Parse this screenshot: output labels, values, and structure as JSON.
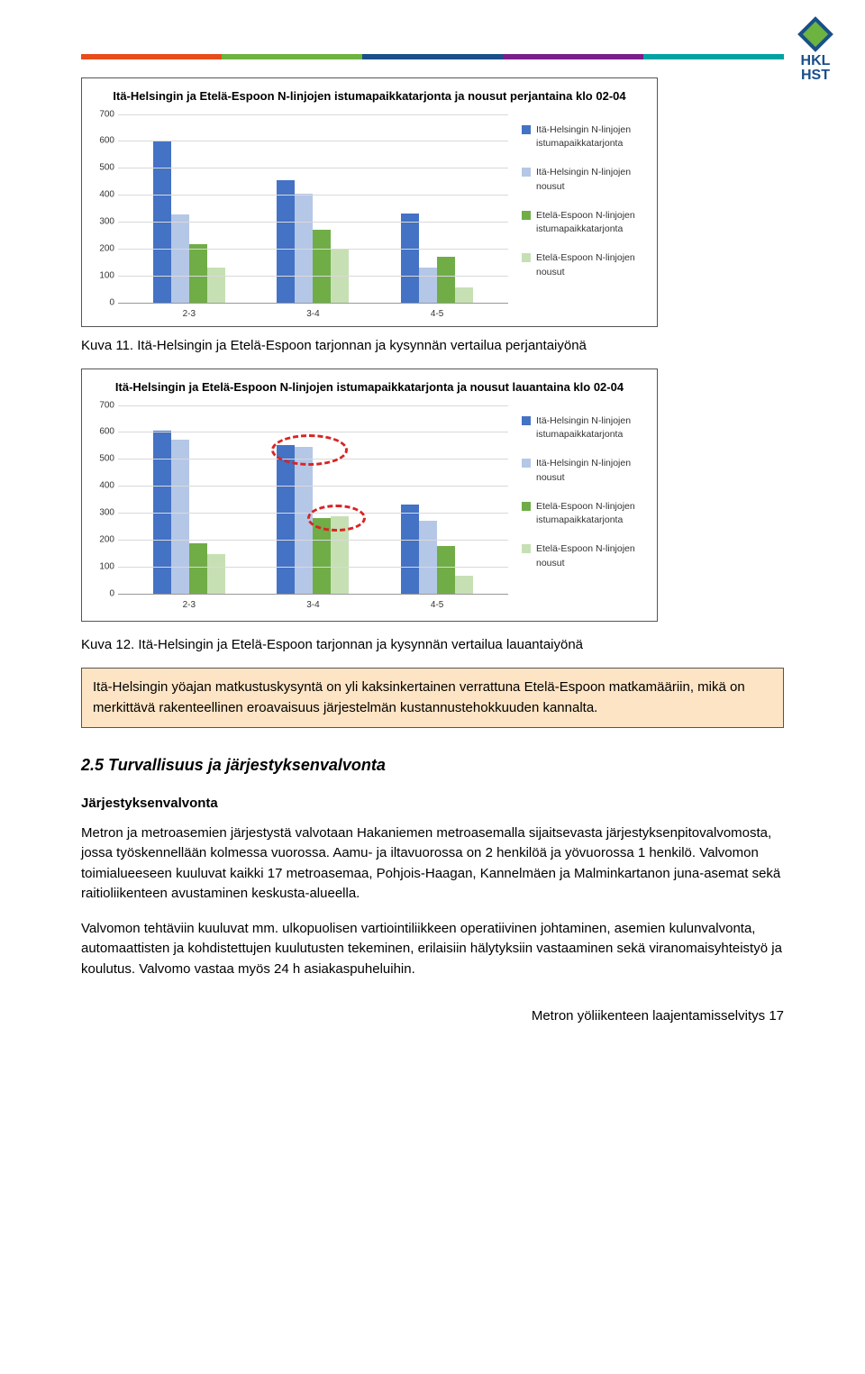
{
  "logo": {
    "line1": "HKL",
    "line2": "HST"
  },
  "header_bar_colors": [
    "#e84c1a",
    "#6db33f",
    "#1a4f8a",
    "#7a1e8c",
    "#00a3a3"
  ],
  "chart1": {
    "type": "bar",
    "title": "Itä-Helsingin ja Etelä-Espoon N-linjojen istumapaikkatarjonta ja nousut perjantaina klo 02-04",
    "ylim": [
      0,
      700
    ],
    "ytick_step": 100,
    "categories": [
      "2-3",
      "3-4",
      "4-5"
    ],
    "series": [
      {
        "label": "Itä-Helsingin N-linjojen istumapaikkatarjonta",
        "color": "#4472c4",
        "values": [
          600,
          455,
          330
        ]
      },
      {
        "label": "Itä-Helsingin N-linjojen nousut",
        "color": "#b5c7e7",
        "values": [
          325,
          405,
          130
        ]
      },
      {
        "label": "Etelä-Espoon N-linjojen istumapaikkatarjonta",
        "color": "#70ad47",
        "values": [
          215,
          270,
          170
        ]
      },
      {
        "label": "Etelä-Espoon N-linjojen nousut",
        "color": "#c6e0b4",
        "values": [
          130,
          195,
          55
        ]
      }
    ],
    "grid_color": "#d9d9d9",
    "background_color": "#ffffff"
  },
  "caption1": "Kuva 11. Itä-Helsingin ja Etelä-Espoon tarjonnan ja kysynnän vertailua perjantaiyönä",
  "chart2": {
    "type": "bar",
    "title": "Itä-Helsingin ja Etelä-Espoon N-linjojen istumapaikkatarjonta ja nousut lauantaina klo 02-04",
    "ylim": [
      0,
      700
    ],
    "ytick_step": 100,
    "categories": [
      "2-3",
      "3-4",
      "4-5"
    ],
    "series": [
      {
        "label": "Itä-Helsingin N-linjojen istumapaikkatarjonta",
        "color": "#4472c4",
        "values": [
          605,
          550,
          330
        ]
      },
      {
        "label": "Itä-Helsingin N-linjojen nousut",
        "color": "#b5c7e7",
        "values": [
          570,
          545,
          270
        ]
      },
      {
        "label": "Etelä-Espoon N-linjojen istumapaikkatarjonta",
        "color": "#70ad47",
        "values": [
          185,
          280,
          175
        ]
      },
      {
        "label": "Etelä-Espoon N-linjojen nousut",
        "color": "#c6e0b4",
        "values": [
          145,
          285,
          65
        ]
      }
    ],
    "circles": [
      {
        "cx_pct": 49,
        "cy_pct": 24,
        "w": 85,
        "h": 35
      },
      {
        "cx_pct": 56,
        "cy_pct": 60,
        "w": 65,
        "h": 30
      }
    ],
    "grid_color": "#d9d9d9",
    "background_color": "#ffffff"
  },
  "caption2": "Kuva 12. Itä-Helsingin ja Etelä-Espoon tarjonnan ja kysynnän vertailua lauantaiyönä",
  "highlight": "Itä-Helsingin yöajan matkustuskysyntä on yli kaksinkertainen verrattuna Etelä-Espoon matkamääriin, mikä on merkittävä rakenteellinen eroavaisuus järjestelmän kustannus­tehokkuuden kannalta.",
  "section": {
    "number": "2.5",
    "title": "Turvallisuus ja järjestyksenvalvonta"
  },
  "subheading": "Järjestyksenvalvonta",
  "para1": "Metron ja metroasemien järjestystä valvotaan Hakaniemen metroasemalla sijaitsevasta järjestyksenpitovalvomosta, jossa työskennellään kolmessa vuorossa. Aamu- ja iltavuorossa on 2 henkilöä ja yövuorossa 1 henkilö. Valvomon toimialueeseen kuuluvat kaikki 17 metroasemaa, Pohjois-Haagan, Kannelmäen ja Malminkartanon juna-asemat sekä raitioliikenteen avustaminen keskusta-alueella.",
  "para2": "Valvomon tehtäviin kuuluvat mm. ulkopuolisen vartiointiliikkeen operatiivinen johtaminen, asemien kulunvalvonta, automaattisten ja kohdistettujen kuulutusten tekeminen, erilaisiin hälytyksiin vastaaminen sekä viranomaisyhteistyö ja koulutus. Valvomo vastaa myös 24 h asiakaspuheluihin.",
  "footer": {
    "doc": "Metron yöliikenteen laajentamisselvitys",
    "page": "17"
  }
}
